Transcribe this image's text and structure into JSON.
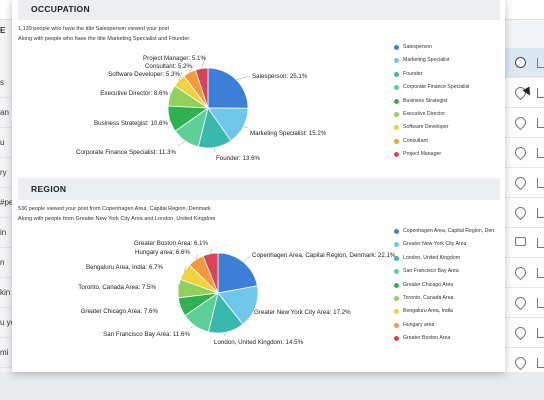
{
  "occupation": {
    "title": "OCCUPATION",
    "desc1": "1,139 people who have the title Salesperson viewed your post",
    "desc2": "Along with people who have the title Marketing Specialist and Founder",
    "slices": [
      {
        "name": "Salesperson",
        "label": "Salesperson: 25.1%",
        "value": 25.1,
        "color": "#3d7fd6"
      },
      {
        "name": "Marketing Specialist",
        "label": "Marketing Specialist: 15.2%",
        "value": 15.2,
        "color": "#6ec6e8"
      },
      {
        "name": "Founder",
        "label": "Founder: 13.6%",
        "value": 13.6,
        "color": "#39b8b0"
      },
      {
        "name": "Corporate Finance Specialist",
        "label": "Corporate Finance Specialist: 11.3%",
        "value": 11.3,
        "color": "#5dcf98"
      },
      {
        "name": "Business Strategist",
        "label": "Business Strategist: 10.6%",
        "value": 10.6,
        "color": "#2fb152"
      },
      {
        "name": "Executive Director",
        "label": "Executive Director: 8.6%",
        "value": 8.6,
        "color": "#8fd15b"
      },
      {
        "name": "Software Developer",
        "label": "Software Developer: 5.3%",
        "value": 5.3,
        "color": "#f0d13e"
      },
      {
        "name": "Consultant",
        "label": "Consultant: 5.2%",
        "value": 5.2,
        "color": "#f29a3c"
      },
      {
        "name": "Project Manager",
        "label": "Project Manager: 5.1%",
        "value": 5.1,
        "color": "#d9435a"
      }
    ]
  },
  "region": {
    "title": "REGION",
    "desc1": "536 people viewed your post from Copenhagen Area, Capital Region, Denmark",
    "desc2": "Along with people from Greater New York City Area and London, United Kingdom",
    "slices": [
      {
        "name": "Copenhagen Area, Capital Region, Den",
        "label": "Copenhagen Area, Capital Region, Denmark: 22.1%",
        "value": 22.1,
        "color": "#3d7fd6"
      },
      {
        "name": "Greater New York City Area",
        "label": "Greater New York City Area: 17.2%",
        "value": 17.2,
        "color": "#6ec6e8"
      },
      {
        "name": "London, United Kingdom",
        "label": "London, United Kingdom: 14.5%",
        "value": 14.5,
        "color": "#39b8b0"
      },
      {
        "name": "San Francisco Bay Area",
        "label": "San Francisco Bay Area: 11.6%",
        "value": 11.6,
        "color": "#5dcf98"
      },
      {
        "name": "Greater Chicago Area",
        "label": "Greater Chicago Area: 7.6%",
        "value": 7.6,
        "color": "#2fb152"
      },
      {
        "name": "Toronto, Canada Area",
        "label": "Toronto, Canada Area: 7.5%",
        "value": 7.5,
        "color": "#8fd15b"
      },
      {
        "name": "Bengaluru Area, India",
        "label": "Bengaluru Area, India: 6.7%",
        "value": 6.7,
        "color": "#f0d13e"
      },
      {
        "name": "Hungary area",
        "label": "Hungary area: 6.6%",
        "value": 6.6,
        "color": "#f29a3c"
      },
      {
        "name": "Greater Boston Area",
        "label": "Greater Boston Area: 6.1%",
        "value": 6.1,
        "color": "#d9435a"
      }
    ]
  },
  "background": {
    "left_heading": "E",
    "left_rows": [
      "s",
      "an",
      "u",
      "ry",
      "#pe",
      "in",
      "n",
      "kin",
      "u yo",
      "mi"
    ]
  },
  "chart_data": [
    {
      "type": "pie",
      "title": "OCCUPATION",
      "categories": [
        "Salesperson",
        "Marketing Specialist",
        "Founder",
        "Corporate Finance Specialist",
        "Business Strategist",
        "Executive Director",
        "Software Developer",
        "Consultant",
        "Project Manager"
      ],
      "values": [
        25.1,
        15.2,
        13.6,
        11.3,
        10.6,
        8.6,
        5.3,
        5.2,
        5.1
      ],
      "legend": "right"
    },
    {
      "type": "pie",
      "title": "REGION",
      "categories": [
        "Copenhagen Area, Capital Region, Denmark",
        "Greater New York City Area",
        "London, United Kingdom",
        "San Francisco Bay Area",
        "Greater Chicago Area",
        "Toronto, Canada Area",
        "Bengaluru Area, India",
        "Hungary area",
        "Greater Boston Area"
      ],
      "values": [
        22.1,
        17.2,
        14.5,
        11.6,
        7.6,
        7.5,
        6.7,
        6.6,
        6.1
      ],
      "legend": "right"
    }
  ]
}
